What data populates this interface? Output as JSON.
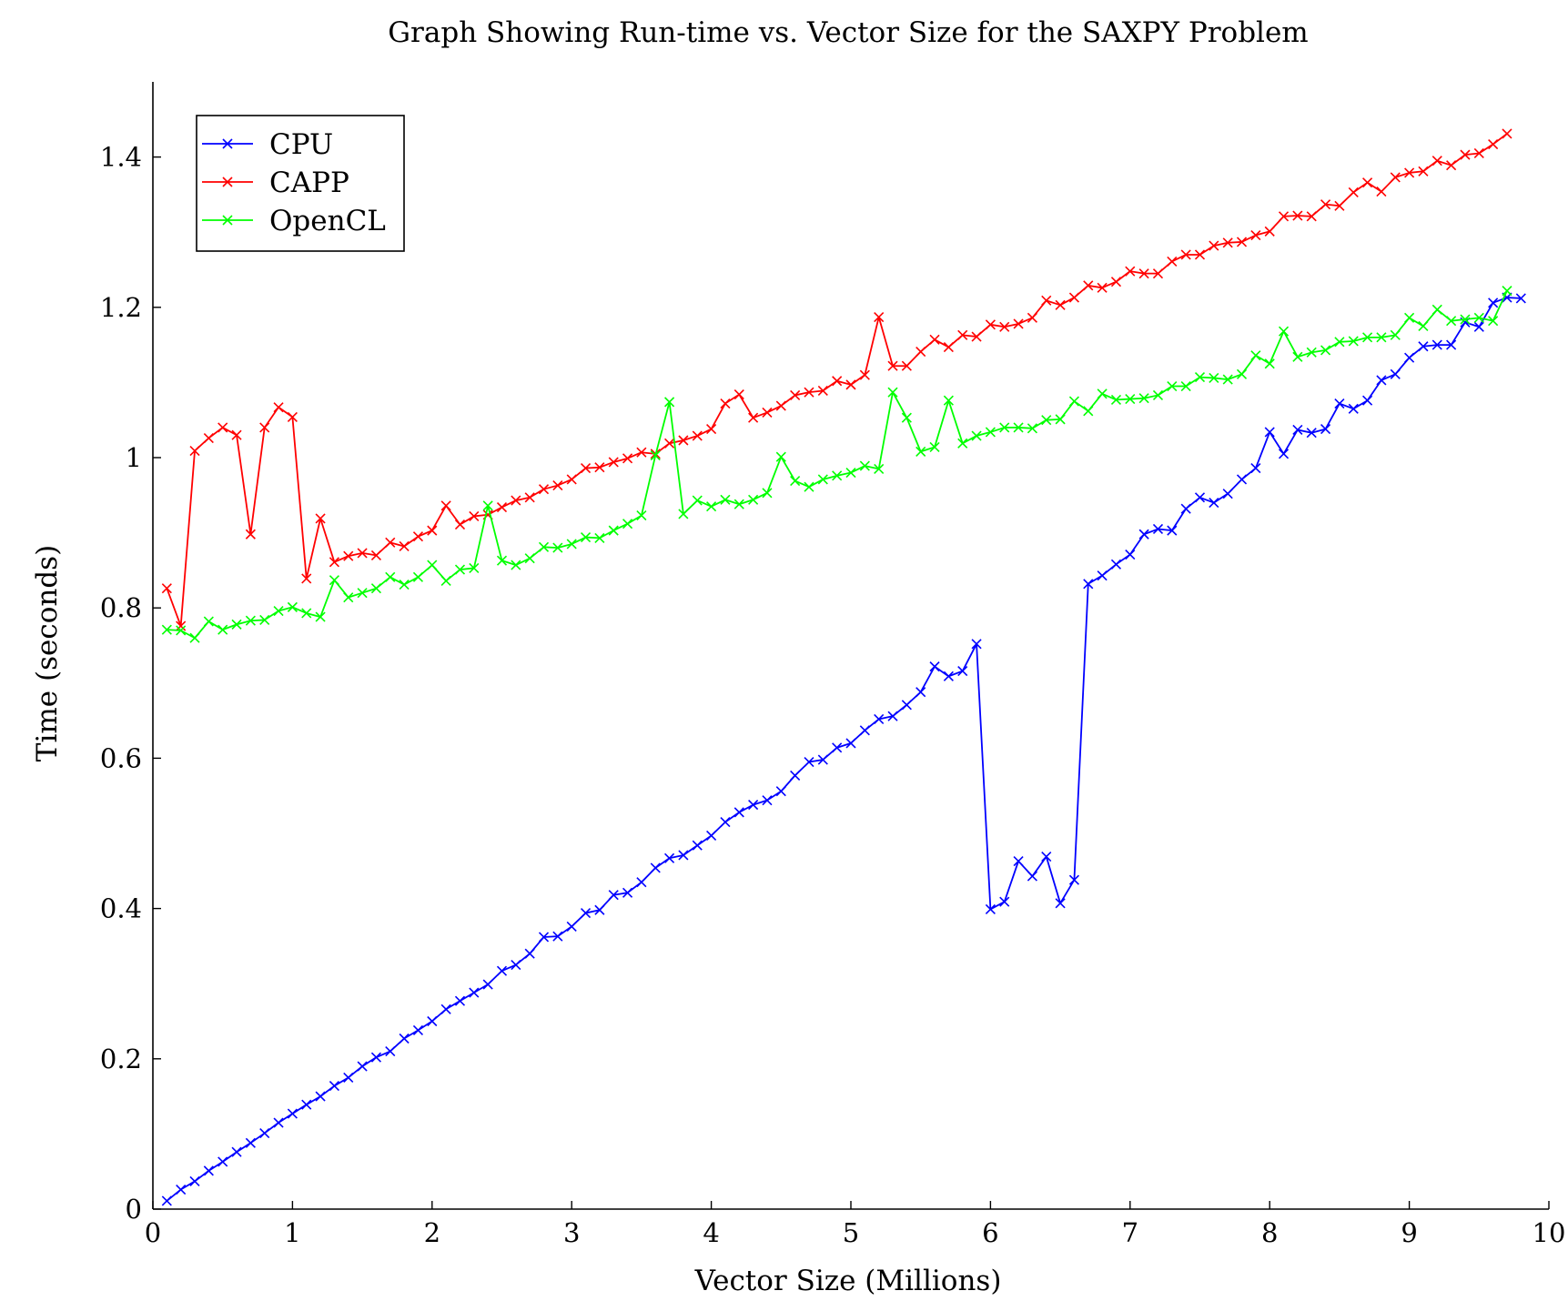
{
  "chart_data": {
    "type": "line",
    "title": "Graph Showing Run-time vs. Vector Size for the SAXPY Problem",
    "xlabel": "Vector Size (Millions)",
    "ylabel": "Time (seconds)",
    "xlim": [
      0,
      10
    ],
    "ylim": [
      0,
      1.5
    ],
    "xticks": [
      0,
      1,
      2,
      3,
      4,
      5,
      6,
      7,
      8,
      9,
      10
    ],
    "yticks": [
      0,
      0.2,
      0.4,
      0.6,
      0.8,
      1,
      1.2,
      1.4
    ],
    "x_start": 0.1,
    "x_step": 0.1,
    "legend_position": "top-left",
    "grid": false,
    "marker": "x",
    "series": [
      {
        "name": "CPU",
        "color": "#0000ff",
        "values": [
          0.011,
          0.026,
          0.037,
          0.051,
          0.063,
          0.076,
          0.088,
          0.101,
          0.115,
          0.127,
          0.139,
          0.15,
          0.164,
          0.175,
          0.19,
          0.202,
          0.21,
          0.227,
          0.238,
          0.25,
          0.266,
          0.277,
          0.288,
          0.299,
          0.317,
          0.325,
          0.34,
          0.362,
          0.363,
          0.376,
          0.394,
          0.398,
          0.418,
          0.421,
          0.435,
          0.454,
          0.467,
          0.471,
          0.484,
          0.497,
          0.515,
          0.528,
          0.538,
          0.544,
          0.556,
          0.577,
          0.595,
          0.598,
          0.614,
          0.62,
          0.637,
          0.652,
          0.656,
          0.671,
          0.688,
          0.722,
          0.709,
          0.716,
          0.752,
          0.399,
          0.409,
          0.463,
          0.443,
          0.469,
          0.407,
          0.438,
          0.832,
          0.843,
          0.858,
          0.871,
          0.898,
          0.905,
          0.903,
          0.932,
          0.947,
          0.94,
          0.952,
          0.971,
          0.986,
          1.034,
          1.005,
          1.037,
          1.033,
          1.038,
          1.072,
          1.065,
          1.076,
          1.103,
          1.111,
          1.133,
          1.148,
          1.15,
          1.15,
          1.18,
          1.174,
          1.206,
          1.213,
          1.212
        ]
      },
      {
        "name": "CAPP",
        "color": "#ff0000",
        "values": [
          0.826,
          0.776,
          1.009,
          1.026,
          1.04,
          1.03,
          0.898,
          1.04,
          1.067,
          1.054,
          0.839,
          0.919,
          0.861,
          0.869,
          0.873,
          0.87,
          0.887,
          0.882,
          0.895,
          0.903,
          0.936,
          0.911,
          0.922,
          0.924,
          0.934,
          0.943,
          0.947,
          0.958,
          0.963,
          0.971,
          0.986,
          0.987,
          0.994,
          0.999,
          1.007,
          1.005,
          1.019,
          1.023,
          1.029,
          1.038,
          1.072,
          1.084,
          1.053,
          1.06,
          1.069,
          1.083,
          1.087,
          1.089,
          1.102,
          1.097,
          1.11,
          1.187,
          1.122,
          1.122,
          1.141,
          1.157,
          1.147,
          1.163,
          1.161,
          1.177,
          1.174,
          1.178,
          1.186,
          1.209,
          1.203,
          1.213,
          1.229,
          1.226,
          1.234,
          1.248,
          1.245,
          1.245,
          1.261,
          1.27,
          1.27,
          1.282,
          1.286,
          1.287,
          1.296,
          1.301,
          1.321,
          1.322,
          1.321,
          1.337,
          1.335,
          1.353,
          1.366,
          1.354,
          1.373,
          1.379,
          1.381,
          1.395,
          1.389,
          1.403,
          1.405,
          1.417,
          1.431
        ]
      },
      {
        "name": "OpenCL",
        "color": "#00ff00",
        "values": [
          0.771,
          0.77,
          0.76,
          0.782,
          0.771,
          0.778,
          0.783,
          0.784,
          0.796,
          0.801,
          0.793,
          0.788,
          0.837,
          0.814,
          0.82,
          0.826,
          0.841,
          0.831,
          0.841,
          0.857,
          0.836,
          0.851,
          0.853,
          0.936,
          0.863,
          0.857,
          0.866,
          0.881,
          0.88,
          0.885,
          0.894,
          0.893,
          0.903,
          0.912,
          0.923,
          1.003,
          1.074,
          0.925,
          0.943,
          0.935,
          0.944,
          0.938,
          0.944,
          0.953,
          1.001,
          0.969,
          0.961,
          0.971,
          0.976,
          0.98,
          0.989,
          0.985,
          1.087,
          1.053,
          1.008,
          1.014,
          1.076,
          1.019,
          1.029,
          1.034,
          1.04,
          1.04,
          1.039,
          1.05,
          1.051,
          1.075,
          1.062,
          1.085,
          1.077,
          1.078,
          1.079,
          1.083,
          1.095,
          1.095,
          1.107,
          1.106,
          1.104,
          1.111,
          1.136,
          1.125,
          1.168,
          1.134,
          1.14,
          1.143,
          1.154,
          1.155,
          1.16,
          1.16,
          1.163,
          1.186,
          1.175,
          1.197,
          1.182,
          1.184,
          1.186,
          1.182,
          1.222
        ]
      }
    ]
  }
}
